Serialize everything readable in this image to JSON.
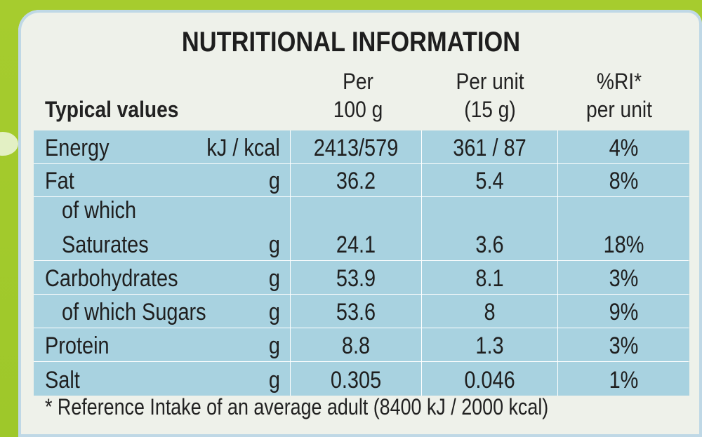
{
  "title": "NUTRITIONAL INFORMATION",
  "headers": {
    "typical": "Typical values",
    "per100_line1": "Per",
    "per100_line2": "100 g",
    "perunit_line1": "Per unit",
    "perunit_line2": "(15 g)",
    "ri_line1": "%RI*",
    "ri_line2": "per unit"
  },
  "rows": [
    {
      "label": "Energy",
      "unit": "kJ / kcal",
      "per100": "2413/579",
      "perunit": "361 / 87",
      "ri": "4%"
    },
    {
      "label": "Fat",
      "unit": "g",
      "per100": "36.2",
      "perunit": "5.4",
      "ri": "8%"
    },
    {
      "label_top": "of which",
      "label": "Saturates",
      "unit": "g",
      "per100": "24.1",
      "perunit": "3.6",
      "ri": "18%"
    },
    {
      "label": "Carbohydrates",
      "unit": "g",
      "per100": "53.9",
      "perunit": "8.1",
      "ri": "3%"
    },
    {
      "label": "of which Sugars",
      "unit": "g",
      "per100": "53.6",
      "perunit": "8",
      "ri": "9%"
    },
    {
      "label": "Protein",
      "unit": "g",
      "per100": "8.8",
      "perunit": "1.3",
      "ri": "3%"
    },
    {
      "label": "Salt",
      "unit": "g",
      "per100": "0.305",
      "perunit": "0.046",
      "ri": "1%"
    }
  ],
  "footnote": "* Reference Intake of an average adult (8400 kJ / 2000 kcal)"
}
